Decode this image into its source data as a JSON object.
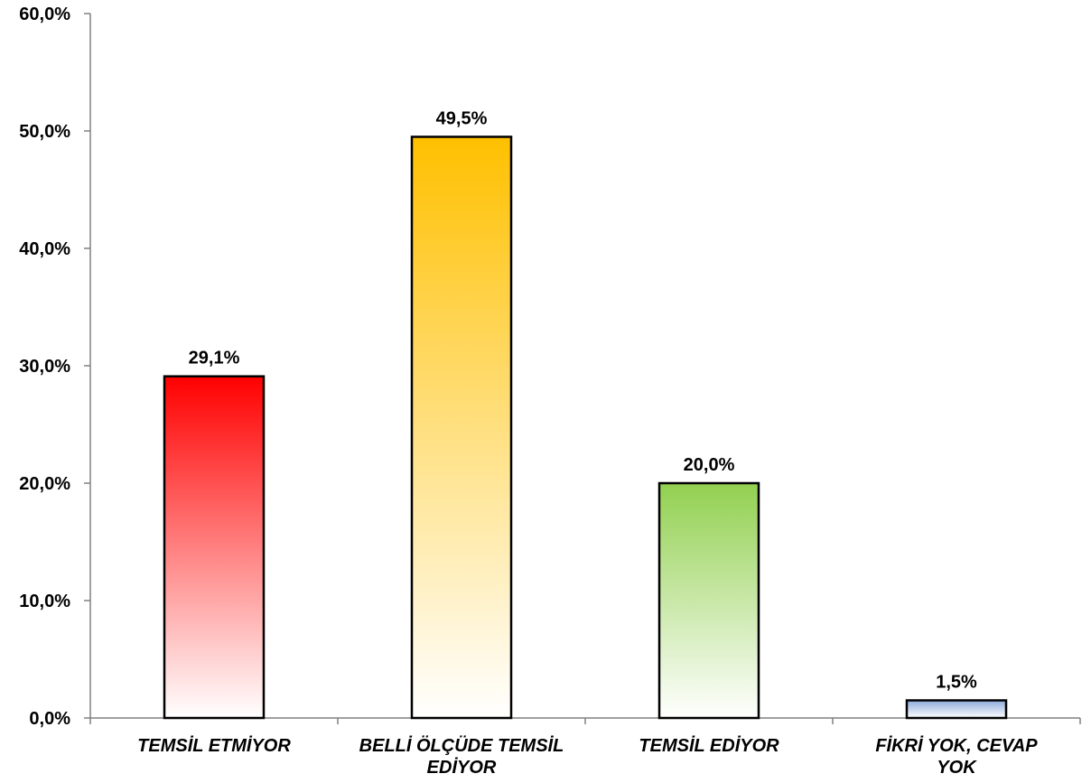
{
  "chart_data": {
    "type": "bar",
    "categories": [
      [
        "TEMSİL ETMİYOR"
      ],
      [
        "BELLİ ÖLÇÜDE TEMSİL",
        "EDİYOR"
      ],
      [
        "TEMSİL EDİYOR"
      ],
      [
        "FİKRİ YOK, CEVAP",
        "YOK"
      ]
    ],
    "values": [
      29.1,
      49.5,
      20.0,
      1.5
    ],
    "data_labels": [
      "29,1%",
      "49,5%",
      "20,0%",
      "1,5%"
    ],
    "ylim": [
      0,
      60
    ],
    "yticks": [
      {
        "value": 0,
        "label": "0,0%"
      },
      {
        "value": 10,
        "label": "10,0%"
      },
      {
        "value": 20,
        "label": "20,0%"
      },
      {
        "value": 30,
        "label": "30,0%"
      },
      {
        "value": 40,
        "label": "40,0%"
      },
      {
        "value": 50,
        "label": "50,0%"
      },
      {
        "value": 60,
        "label": "60,0%"
      }
    ],
    "title": "",
    "xlabel": "",
    "ylabel": "",
    "grid": false,
    "bar_colors": [
      "#ff0000",
      "#ffc000",
      "#92d050",
      "#8eaadb"
    ]
  }
}
